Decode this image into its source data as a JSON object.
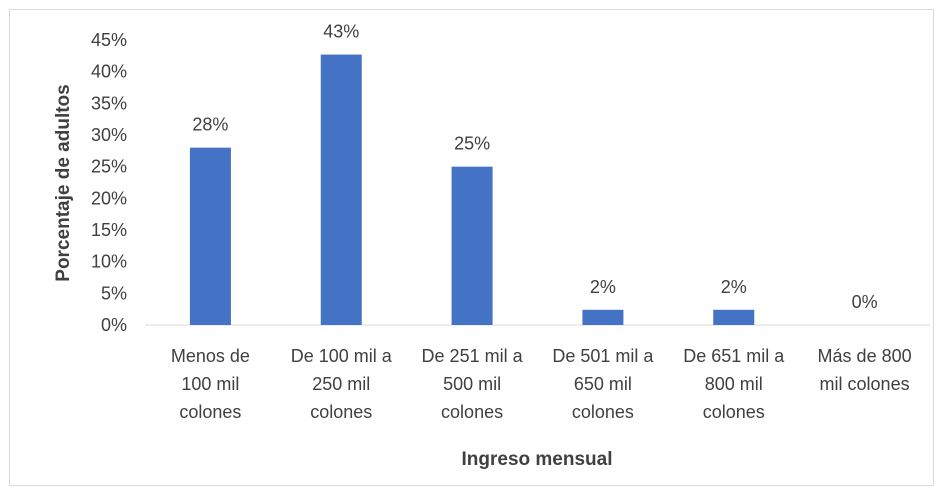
{
  "chart_data": {
    "type": "bar",
    "title": "",
    "xlabel": "Ingreso mensual",
    "ylabel": "Porcentaje de adultos",
    "categories": [
      [
        "Menos de",
        "100 mil",
        "colones"
      ],
      [
        "De 100 mil a",
        "250 mil",
        "colones"
      ],
      [
        "De 251 mil a",
        "500 mil",
        "colones"
      ],
      [
        "De 501 mil a",
        "650 mil",
        "colones"
      ],
      [
        "De 651 mil a",
        "800 mil",
        "colones"
      ],
      [
        "Más de 800",
        "mil colones"
      ]
    ],
    "values": [
      28,
      42.7,
      25,
      2.4,
      2.4,
      0
    ],
    "data_labels": [
      "28%",
      "43%",
      "25%",
      "2%",
      "2%",
      "0%"
    ],
    "y_ticks": [
      "0%",
      "5%",
      "10%",
      "15%",
      "20%",
      "25%",
      "30%",
      "35%",
      "40%",
      "45%"
    ],
    "ylim": [
      0,
      45
    ],
    "grid": false,
    "legend": "none",
    "bar_color": "#4472c4"
  }
}
